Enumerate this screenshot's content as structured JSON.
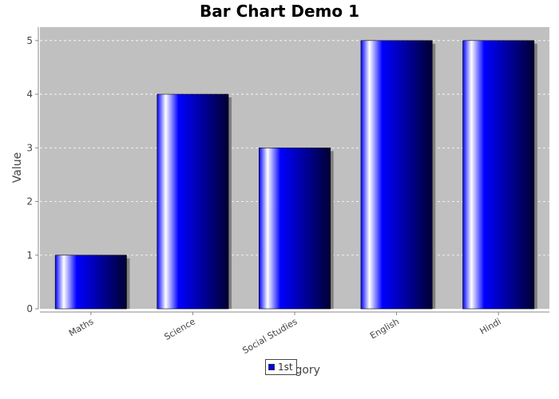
{
  "chart_data": {
    "type": "bar",
    "title": "Bar Chart Demo 1",
    "xlabel": "Category",
    "ylabel": "Value",
    "categories": [
      "Maths",
      "Science",
      "Social Studies",
      "English",
      "Hindi"
    ],
    "series": [
      {
        "name": "1st",
        "values": [
          1,
          4,
          3,
          5,
          5
        ]
      }
    ],
    "ylim": [
      0,
      5.25
    ],
    "yticks": [
      0,
      1,
      2,
      3,
      4,
      5
    ],
    "grid": true,
    "legend_position": "bottom",
    "colors": {
      "bar": "#0000ff",
      "bar_dark": "#000033",
      "bar_highlight": "#ffffff",
      "plot_background": "#c0c0c0",
      "gridline": "#ffffff",
      "shadow": "#808080"
    }
  }
}
